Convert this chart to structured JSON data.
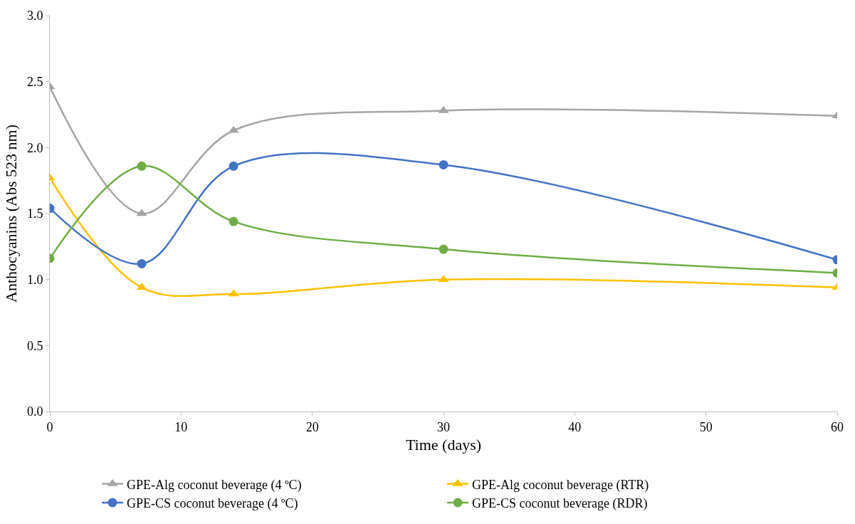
{
  "chart_data": {
    "type": "line",
    "xlabel": "Time (days)",
    "ylabel": "Anthocyanins (Abs 523 nm)",
    "x": [
      0,
      7,
      14,
      30,
      60
    ],
    "series": [
      {
        "name": "GPE-Alg coconut beverage (4 ºC)",
        "color": "#a5a5a5",
        "marker": "triangle",
        "values": [
          2.46,
          1.5,
          2.13,
          2.28,
          2.24
        ]
      },
      {
        "name": "GPE-Alg coconut beverage (RTR)",
        "color": "#ffc000",
        "marker": "triangle",
        "values": [
          1.77,
          0.94,
          0.89,
          1.0,
          0.94
        ]
      },
      {
        "name": "GPE-CS coconut beverage (4 ºC)",
        "color": "#4472c4",
        "marker": "circle",
        "values": [
          1.54,
          1.12,
          1.86,
          1.87,
          1.15
        ]
      },
      {
        "name": "GPE-CS coconut beverage (RDR)",
        "color": "#70ad47",
        "marker": "circle",
        "values": [
          1.16,
          1.86,
          1.44,
          1.23,
          1.05
        ]
      }
    ],
    "xlim": [
      0,
      60
    ],
    "xticks": [
      0,
      10,
      20,
      30,
      40,
      50,
      60
    ],
    "ylim": [
      0,
      3
    ],
    "yticks": [
      {
        "value": 0,
        "label": "0.0"
      },
      {
        "value": 0.5,
        "label": "0.5"
      },
      {
        "value": 1,
        "label": "1.0"
      },
      {
        "value": 1.5,
        "label": "1.5"
      },
      {
        "value": 2,
        "label": "2.0"
      },
      {
        "value": 2.5,
        "label": "2.5"
      },
      {
        "value": 3,
        "label": "3.0"
      }
    ],
    "legend": "bottom",
    "line_style": "solid"
  }
}
